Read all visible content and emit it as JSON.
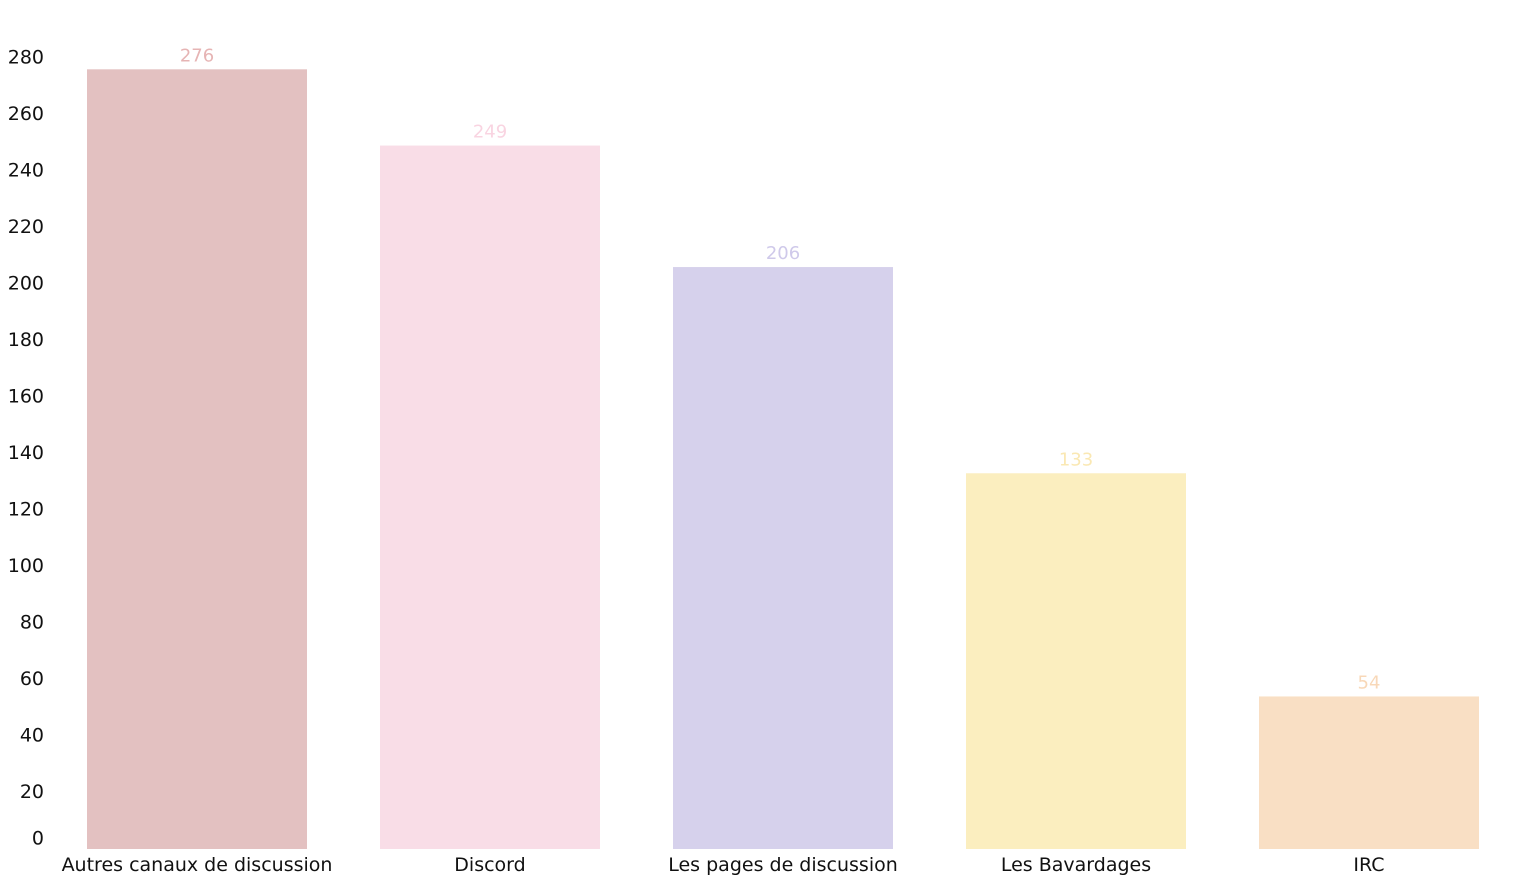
{
  "chart_data": {
    "type": "bar",
    "title": "",
    "xlabel": "",
    "ylabel": "",
    "ylim": [
      0,
      280
    ],
    "yticks": [
      0,
      20,
      40,
      60,
      80,
      100,
      120,
      140,
      160,
      180,
      200,
      220,
      240,
      260,
      280
    ],
    "categories": [
      "Autres canaux de discussion",
      "Discord",
      "Les pages de discussion",
      "Les Bavardages",
      "IRC"
    ],
    "values": [
      276,
      249,
      206,
      133,
      54
    ],
    "colors": [
      "#e3c1c1",
      "#f9dde7",
      "#d6d1ec",
      "#fbeebf",
      "#f9dfc4"
    ],
    "value_label_colors": [
      "#e6b4b4",
      "#f9d4e1",
      "#cfc9ea",
      "#fae8b3",
      "#f8d8b8"
    ],
    "grid": false,
    "legend": "none"
  }
}
